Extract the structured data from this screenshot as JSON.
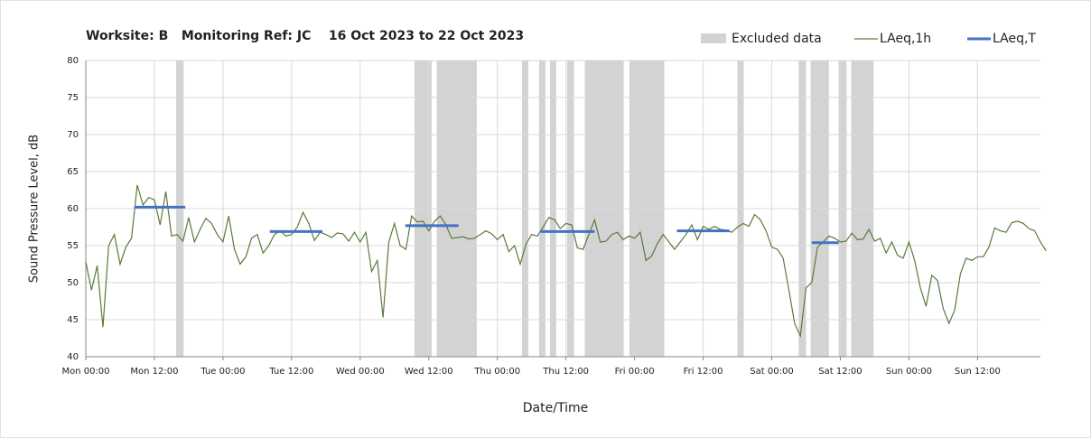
{
  "chart_data": {
    "type": "line",
    "title": "Worksite: B   Monitoring Ref: JC    16 Oct 2023 to 22 Oct 2023",
    "x_label": "Date/Time",
    "y_label": "Sound Pressure Level, dB",
    "xlim": [
      0,
      167
    ],
    "ylim": [
      40,
      80
    ],
    "xticks": [
      {
        "value": 0,
        "label": "Mon 00:00"
      },
      {
        "value": 12,
        "label": "Mon 12:00"
      },
      {
        "value": 24,
        "label": "Tue 00:00"
      },
      {
        "value": 36,
        "label": "Tue 12:00"
      },
      {
        "value": 48,
        "label": "Wed 00:00"
      },
      {
        "value": 60,
        "label": "Wed 12:00"
      },
      {
        "value": 72,
        "label": "Thu 00:00"
      },
      {
        "value": 84,
        "label": "Thu 12:00"
      },
      {
        "value": 96,
        "label": "Fri 00:00"
      },
      {
        "value": 108,
        "label": "Fri 12:00"
      },
      {
        "value": 120,
        "label": "Sat 00:00"
      },
      {
        "value": 132,
        "label": "Sat 12:00"
      },
      {
        "value": 144,
        "label": "Sun 00:00"
      },
      {
        "value": 156,
        "label": "Sun 12:00"
      }
    ],
    "yticks": [
      40,
      45,
      50,
      55,
      60,
      65,
      70,
      75,
      80
    ],
    "grid": true,
    "excluded": {
      "name": "Excluded data",
      "color": "#d3d3d3",
      "ranges": [
        [
          15.8,
          17.1
        ],
        [
          57.5,
          60.5
        ],
        [
          61.4,
          68.4
        ],
        [
          76.3,
          77.4
        ],
        [
          79.3,
          80.4
        ],
        [
          81.2,
          82.3
        ],
        [
          84.2,
          85.4
        ],
        [
          87.3,
          94.1
        ],
        [
          95.1,
          101.2
        ],
        [
          114,
          115.1
        ],
        [
          124.7,
          126
        ],
        [
          126.8,
          130
        ],
        [
          131.7,
          133.1
        ],
        [
          133.9,
          137.8
        ]
      ]
    },
    "series": [
      {
        "name": "LAeq,1h",
        "color": "#5b7a3c",
        "values": [
          52.8,
          49,
          52.3,
          44,
          55,
          56.5,
          52.5,
          54.8,
          56,
          63.2,
          60.5,
          61.5,
          61.2,
          57.8,
          62.3,
          56.3,
          56.5,
          55.6,
          58.8,
          55.5,
          57.2,
          58.7,
          58,
          56.5,
          55.5,
          59,
          54.5,
          52.5,
          53.5,
          56,
          56.5,
          54,
          55,
          56.5,
          57,
          56.3,
          56.5,
          57.5,
          59.5,
          58,
          55.7,
          56.8,
          56.5,
          56.1,
          56.7,
          56.6,
          55.6,
          56.8,
          55.5,
          56.8,
          51.5,
          53,
          45.3,
          55.5,
          58,
          55,
          54.5,
          59,
          58.2,
          58.3,
          57,
          58.3,
          59,
          57.8,
          56,
          56.1,
          56.2,
          55.9,
          56,
          56.5,
          57,
          56.6,
          55.8,
          56.5,
          54.2,
          55,
          52.5,
          55.2,
          56.5,
          56.3,
          57.5,
          58.8,
          58.5,
          57.3,
          58,
          57.8,
          54.7,
          54.5,
          56.5,
          58.5,
          55.5,
          55.6,
          56.5,
          56.8,
          55.8,
          56.3,
          56,
          56.8,
          53,
          53.6,
          55.3,
          56.5,
          55.5,
          54.5,
          55.5,
          56.5,
          57.8,
          55.8,
          57.6,
          57.2,
          57.6,
          57.2,
          57.1,
          56.8,
          57.5,
          58,
          57.6,
          59.2,
          58.5,
          57,
          54.8,
          54.5,
          53.3,
          49,
          44.5,
          42.8,
          49.3,
          50,
          54.8,
          55.5,
          56.3,
          56,
          55.5,
          55.6,
          56.7,
          55.8,
          55.9,
          57.2,
          55.6,
          56,
          54,
          55.5,
          53.7,
          53.3,
          55.5,
          53,
          49.3,
          46.8,
          51,
          50.3,
          46.5,
          44.5,
          46.3,
          51.2,
          53.3,
          53,
          53.5,
          53.5,
          54.8,
          57.4,
          57,
          56.8,
          58.1,
          58.3,
          58,
          57.3,
          57,
          55.5,
          54.3
        ]
      },
      {
        "name": "LAeq,T",
        "color": "#4472c4",
        "segments": [
          {
            "x": [
              8.5,
              17.4
            ],
            "value": 60.2
          },
          {
            "x": [
              32.2,
              41.4
            ],
            "value": 56.9
          },
          {
            "x": [
              55.9,
              65.2
            ],
            "value": 57.7
          },
          {
            "x": [
              79.6,
              89
            ],
            "value": 56.9
          },
          {
            "x": [
              103.4,
              112.6
            ],
            "value": 57
          },
          {
            "x": [
              127,
              131.7
            ],
            "value": 55.4
          }
        ]
      }
    ]
  }
}
